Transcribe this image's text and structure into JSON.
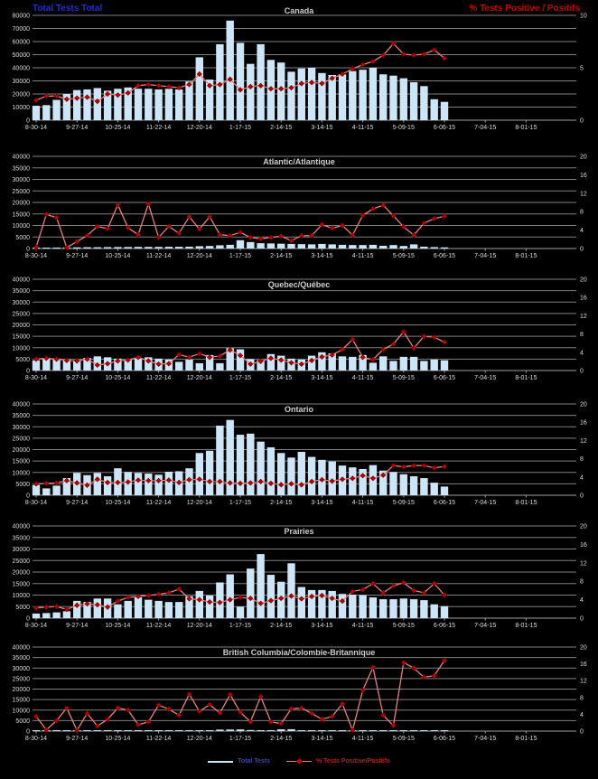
{
  "header": {
    "left_label": "Total Tests Total",
    "right_label": "% Tests Positive / Positifs"
  },
  "legend": {
    "tests_label": "Total Tests",
    "percent_label": "% Tests Positive/Positifs"
  },
  "colors": {
    "background": "#000000",
    "bar_fill": "#cde6f7",
    "line": "#e97e7e",
    "marker": "#c00000",
    "marker_edge": "#7e0000",
    "grid": "#7f7f7f",
    "baseline": "#a0a0a0",
    "axis_text": "#dcdcdc",
    "title_text": "#cfcfcf",
    "header_left": "#2a2ad4",
    "header_right": "#cc0000"
  },
  "chart_data": {
    "type": "bar",
    "layout": "6 stacked weekly panels, bars = total tests (left axis), line+diamond markers = % tests positive (right axis), black background, horizontal gridlines on",
    "x_tick_labels": [
      "8-30-14",
      "9-27-14",
      "10-25-14",
      "11-22-14",
      "12-20-14",
      "1-17-15",
      "2-14-15",
      "3-14-15",
      "4-11-15",
      "5-09-15",
      "6-06-15",
      "7-04-15",
      "8-01-15"
    ],
    "categories": [
      "8-30-14",
      "9-06-14",
      "9-13-14",
      "9-20-14",
      "9-27-14",
      "10-04-14",
      "10-11-14",
      "10-18-14",
      "10-25-14",
      "11-01-14",
      "11-08-14",
      "11-15-14",
      "11-22-14",
      "11-29-14",
      "12-06-14",
      "12-13-14",
      "12-20-14",
      "12-27-14",
      "1-03-15",
      "1-10-15",
      "1-17-15",
      "1-24-15",
      "1-31-15",
      "2-07-15",
      "2-14-15",
      "2-21-15",
      "2-28-15",
      "3-07-15",
      "3-14-15",
      "3-21-15",
      "3-28-15",
      "4-04-15",
      "4-11-15",
      "4-18-15",
      "4-25-15",
      "5-02-15",
      "5-09-15",
      "5-16-15",
      "5-23-15",
      "5-30-15",
      "6-06-15"
    ],
    "panels": [
      {
        "title": "Canada",
        "left_axis": {
          "min": 0,
          "max": 80000,
          "tick_labels": [
            "80000",
            "70000",
            "60000",
            "50000",
            "40000",
            "30000",
            "20000",
            "10000",
            "0"
          ]
        },
        "right_axis": {
          "min": 0,
          "max": 10,
          "tick_labels": [
            "10",
            "5",
            "0"
          ]
        },
        "series": [
          {
            "name": "Total Tests",
            "type": "bar",
            "axis": "left",
            "values": [
              11000,
              11500,
              15500,
              20000,
              23000,
              23500,
              24500,
              22500,
              24000,
              25000,
              24000,
              24000,
              23500,
              24000,
              23500,
              29500,
              48000,
              31000,
              58000,
              76000,
              59000,
              43000,
              58000,
              46000,
              44000,
              37000,
              39500,
              40000,
              36000,
              34500,
              35000,
              37500,
              38500,
              40000,
              35000,
              34000,
              32000,
              29000,
              26000,
              16000,
              14000
            ]
          },
          {
            "name": "% Tests Positive/Positifs",
            "type": "line",
            "axis": "right",
            "values": [
              1.9,
              2.3,
              2.3,
              2.0,
              2.1,
              2.2,
              1.8,
              2.5,
              2.4,
              2.6,
              3.3,
              3.4,
              3.3,
              3.2,
              3.1,
              3.4,
              4.4,
              3.3,
              3.4,
              3.9,
              2.9,
              3.2,
              3.3,
              3.0,
              3.0,
              3.1,
              3.5,
              3.6,
              3.5,
              4.0,
              4.4,
              4.9,
              5.3,
              5.6,
              6.2,
              7.3,
              6.3,
              6.2,
              6.3,
              6.7,
              5.9
            ]
          }
        ]
      },
      {
        "title": "Atlantic/Atlantique",
        "left_axis": {
          "min": 0,
          "max": 40000,
          "tick_labels": [
            "40000",
            "35000",
            "30000",
            "25000",
            "20000",
            "15000",
            "10000",
            "5000",
            "0"
          ]
        },
        "right_axis": {
          "min": 0,
          "max": 20,
          "tick_labels": [
            "20",
            "16",
            "12",
            "8",
            "4",
            "0"
          ]
        },
        "series": [
          {
            "name": "Total Tests",
            "type": "bar",
            "axis": "left",
            "values": [
              350,
              380,
              420,
              450,
              500,
              550,
              550,
              600,
              620,
              650,
              700,
              700,
              700,
              750,
              750,
              800,
              1000,
              1100,
              1400,
              1600,
              3600,
              2800,
              2300,
              2200,
              2100,
              2000,
              1900,
              1800,
              2000,
              1800,
              1600,
              1500,
              1500,
              1600,
              1200,
              1500,
              1100,
              1800,
              800,
              600,
              500
            ]
          },
          {
            "name": "% Tests Positive/Positifs",
            "type": "line",
            "axis": "right",
            "values": [
              0.3,
              7.4,
              6.7,
              0.2,
              1.5,
              2.8,
              4.8,
              4.3,
              9.5,
              4.5,
              3.0,
              9.7,
              2.4,
              4.8,
              3.3,
              6.9,
              4.2,
              6.9,
              3.0,
              2.8,
              3.5,
              2.4,
              2.1,
              2.4,
              2.7,
              1.7,
              2.8,
              2.8,
              5.2,
              4.4,
              5.0,
              2.9,
              7.2,
              8.6,
              9.4,
              7.1,
              4.7,
              2.9,
              5.5,
              6.5,
              7.0
            ]
          }
        ]
      },
      {
        "title": "Quebec/Québec",
        "left_axis": {
          "min": 0,
          "max": 40000,
          "tick_labels": [
            "40000",
            "35000",
            "30000",
            "25000",
            "20000",
            "15000",
            "10000",
            "5000",
            "0"
          ]
        },
        "right_axis": {
          "min": 0,
          "max": 20,
          "tick_labels": [
            "20",
            "16",
            "12",
            "8",
            "4",
            "0"
          ]
        },
        "series": [
          {
            "name": "Total Tests",
            "type": "bar",
            "axis": "left",
            "values": [
              4500,
              5500,
              5200,
              4800,
              4200,
              5500,
              6200,
              5800,
              5200,
              4800,
              5200,
              5800,
              5200,
              4800,
              3800,
              4800,
              3200,
              6800,
              3200,
              9800,
              9300,
              5000,
              4500,
              7200,
              6500,
              5200,
              4800,
              6500,
              8000,
              7500,
              6200,
              6000,
              6800,
              3400,
              6200,
              4200,
              6000,
              6000,
              4200,
              4800,
              4500
            ]
          },
          {
            "name": "% Tests Positive/Positifs",
            "type": "line",
            "axis": "right",
            "values": [
              2.5,
              2.7,
              2.5,
              2.2,
              2.1,
              2.5,
              1.2,
              1.5,
              2.1,
              2.3,
              2.9,
              2.1,
              1.4,
              1.5,
              3.5,
              2.9,
              3.7,
              2.9,
              3.2,
              4.5,
              3.3,
              1.4,
              2.0,
              2.7,
              2.3,
              1.7,
              1.4,
              2.2,
              3.0,
              3.4,
              4.6,
              6.8,
              2.9,
              2.4,
              4.6,
              5.8,
              8.5,
              4.9,
              7.5,
              7.3,
              6.2
            ]
          }
        ]
      },
      {
        "title": "Ontario",
        "left_axis": {
          "min": 0,
          "max": 40000,
          "tick_labels": [
            "40000",
            "35000",
            "30000",
            "25000",
            "20000",
            "15000",
            "10000",
            "5000",
            "0"
          ]
        },
        "right_axis": {
          "min": 0,
          "max": 20,
          "tick_labels": [
            "20",
            "16",
            "12",
            "8",
            "4",
            "0"
          ]
        },
        "series": [
          {
            "name": "Total Tests",
            "type": "bar",
            "axis": "left",
            "values": [
              4500,
              3000,
              4200,
              7500,
              9800,
              8800,
              9800,
              8300,
              11800,
              10200,
              9800,
              9500,
              9000,
              10300,
              10500,
              11800,
              18500,
              19500,
              30500,
              33000,
              26500,
              27000,
              23500,
              21000,
              18500,
              16500,
              19000,
              16800,
              15500,
              14800,
              13000,
              12200,
              11500,
              13200,
              10800,
              10200,
              9200,
              8300,
              7500,
              5500,
              3800
            ]
          },
          {
            "name": "% Tests Positive/Positifs",
            "type": "line",
            "axis": "right",
            "values": [
              2.5,
              2.6,
              2.7,
              3.2,
              2.7,
              2.2,
              3.5,
              2.8,
              2.8,
              2.9,
              3.3,
              3.2,
              3.2,
              3.3,
              2.8,
              3.4,
              3.5,
              3.0,
              3.0,
              2.7,
              2.6,
              2.7,
              3.0,
              2.6,
              2.3,
              2.5,
              2.3,
              3.0,
              3.4,
              3.1,
              3.5,
              3.7,
              4.3,
              3.7,
              4.4,
              6.5,
              6.2,
              6.5,
              6.5,
              6.0,
              6.3
            ]
          }
        ]
      },
      {
        "title": "Prairies",
        "left_axis": {
          "min": 0,
          "max": 40000,
          "tick_labels": [
            "40000",
            "35000",
            "30000",
            "25000",
            "20000",
            "15000",
            "10000",
            "5000",
            "0"
          ]
        },
        "right_axis": {
          "min": 0,
          "max": 20,
          "tick_labels": [
            "20",
            "16",
            "12",
            "8",
            "4",
            "0"
          ]
        },
        "series": [
          {
            "name": "Total Tests",
            "type": "bar",
            "axis": "left",
            "values": [
              2000,
              2200,
              2500,
              3000,
              7500,
              7000,
              8500,
              8500,
              6000,
              7500,
              9000,
              8000,
              7500,
              7000,
              7000,
              9500,
              11800,
              9800,
              15500,
              19000,
              5000,
              21500,
              27800,
              18800,
              15800,
              23800,
              13500,
              12200,
              12200,
              11800,
              10500,
              10200,
              10000,
              9000,
              8200,
              8200,
              8500,
              8200,
              7800,
              6000,
              5200
            ]
          },
          {
            "name": "% Tests Positive/Positifs",
            "type": "line",
            "axis": "right",
            "values": [
              2.2,
              2.4,
              2.5,
              1.9,
              2.8,
              3.1,
              2.9,
              2.4,
              3.7,
              4.5,
              4.7,
              4.9,
              5.2,
              5.5,
              6.3,
              4.2,
              4.0,
              3.5,
              3.4,
              4.0,
              4.5,
              4.3,
              3.2,
              3.8,
              4.3,
              4.8,
              4.2,
              4.7,
              4.9,
              4.3,
              3.7,
              5.8,
              6.2,
              7.5,
              5.5,
              7.0,
              7.7,
              6.0,
              5.5,
              7.5,
              5.0
            ]
          }
        ]
      },
      {
        "title": "British Columbia/Colombie-Britannique",
        "left_axis": {
          "min": 0,
          "max": 40000,
          "tick_labels": [
            "40000",
            "35000",
            "30000",
            "25000",
            "20000",
            "15000",
            "10000",
            "5000",
            "0"
          ]
        },
        "right_axis": {
          "min": 0,
          "max": 20,
          "tick_labels": [
            "20",
            "16",
            "12",
            "8",
            "4",
            "0"
          ]
        },
        "series": [
          {
            "name": "Total Tests",
            "type": "bar",
            "axis": "left",
            "values": [
              150,
              80,
              120,
              150,
              200,
              250,
              250,
              250,
              300,
              250,
              200,
              150,
              150,
              200,
              250,
              250,
              400,
              400,
              700,
              750,
              800,
              500,
              400,
              450,
              850,
              900,
              400,
              300,
              300,
              350,
              300,
              250,
              250,
              300,
              250,
              200,
              150,
              100,
              80,
              50,
              50
            ]
          },
          {
            "name": "% Tests Positive/Positifs",
            "type": "line",
            "axis": "right",
            "values": [
              3.5,
              0.3,
              2.5,
              5.5,
              0.2,
              4.2,
              1.2,
              2.8,
              5.5,
              5.0,
              1.5,
              2.2,
              6.2,
              5.2,
              3.8,
              8.8,
              4.7,
              6.3,
              4.3,
              8.7,
              4.5,
              2.2,
              8.2,
              2.2,
              1.8,
              5.3,
              5.5,
              4.2,
              2.8,
              3.5,
              6.5,
              0.2,
              9.7,
              15.2,
              3.8,
              1.3,
              16.3,
              15.0,
              12.8,
              13.2,
              16.8
            ]
          }
        ]
      }
    ]
  }
}
